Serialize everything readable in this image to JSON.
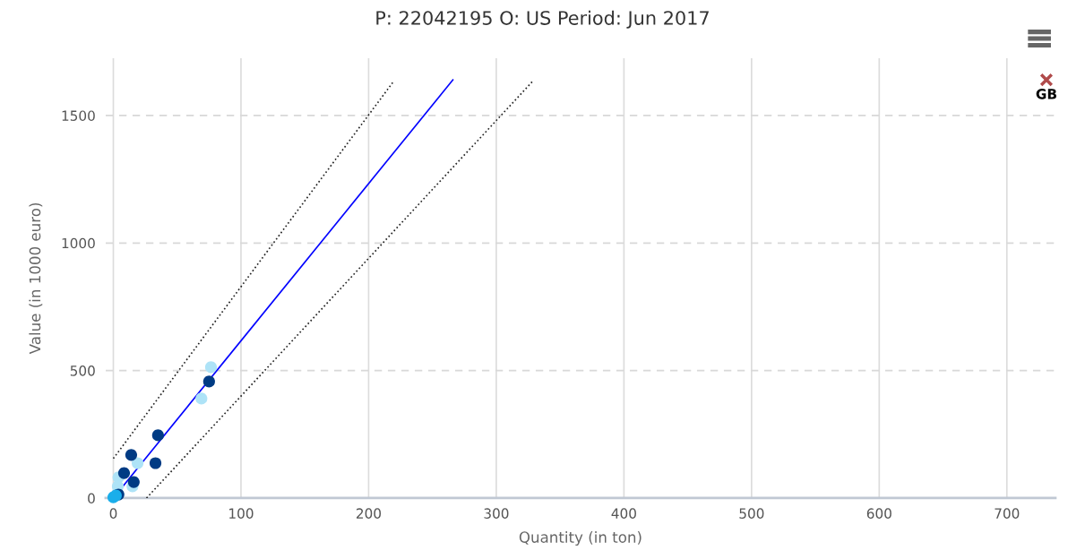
{
  "chart_data": {
    "type": "scatter",
    "title": "P: 22042195 O: US Period: Jun 2017",
    "xlabel": "Quantity (in ton)",
    "ylabel": "Value (in 1000 euro)",
    "xlim": [
      -6,
      738
    ],
    "ylim": [
      0,
      1725
    ],
    "xticks": [
      0,
      100,
      200,
      300,
      400,
      500,
      600,
      700
    ],
    "yticks": [
      0,
      500,
      1000,
      1500
    ],
    "grid": true,
    "marker": "circle",
    "series": [
      {
        "type": "line",
        "color": "#0000ff",
        "line_style": "solid",
        "marker": "none",
        "x": [
          0,
          266
        ],
        "values": [
          0,
          1640
        ]
      },
      {
        "type": "line",
        "color": "#222222",
        "line_style": "dotted",
        "marker": "none",
        "x": [
          0,
          220
        ],
        "values": [
          155,
          1637
        ]
      },
      {
        "type": "line",
        "color": "#222222",
        "line_style": "dotted",
        "marker": "none",
        "x": [
          26,
          329
        ],
        "values": [
          0,
          1637
        ]
      },
      {
        "color": "#aee3f7",
        "x": [
          76.5,
          69,
          19,
          4,
          3.5,
          15
        ],
        "values": [
          513,
          390,
          137,
          81,
          46,
          46
        ]
      },
      {
        "color": "#003b84",
        "x": [
          75,
          35,
          14,
          33,
          8.4,
          16,
          4
        ],
        "values": [
          457,
          246,
          169,
          137,
          98,
          63,
          14
        ]
      },
      {
        "color": "#1aaeea",
        "x": [
          0,
          2
        ],
        "values": [
          3,
          10
        ]
      },
      {
        "color": "#b04a4a",
        "marker": "cross",
        "x": [
          731
        ],
        "values": [
          1640
        ]
      }
    ],
    "annotations": [
      {
        "text": "GB",
        "x": 731,
        "y": 1640
      }
    ]
  }
}
